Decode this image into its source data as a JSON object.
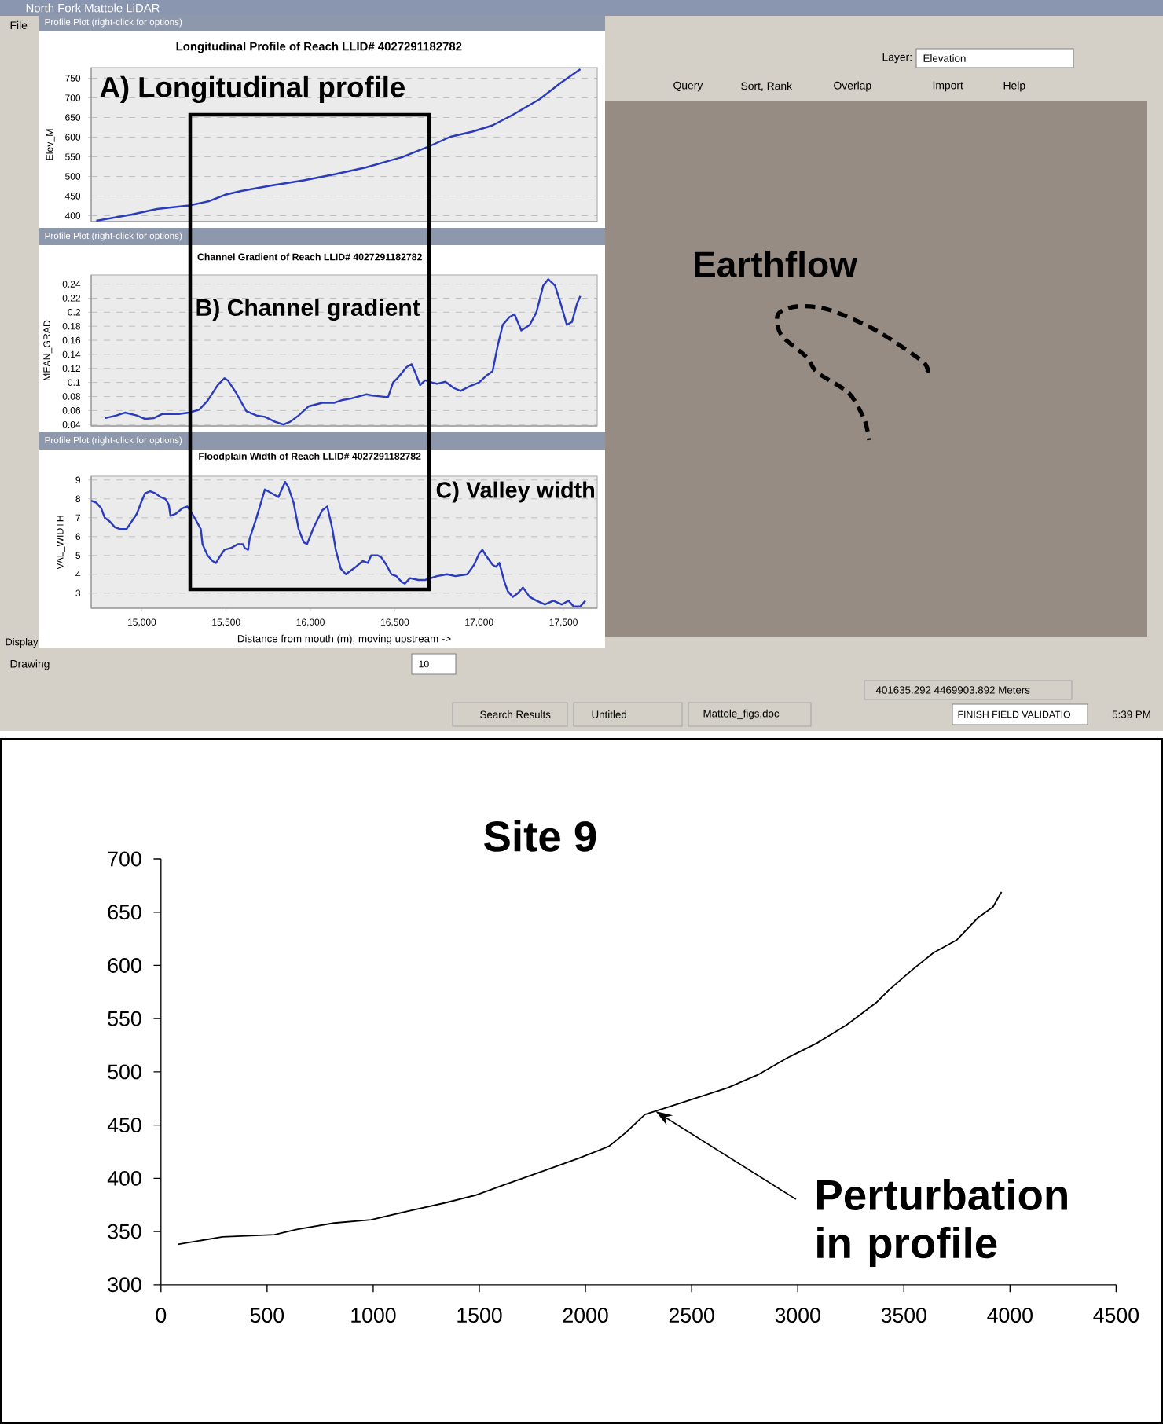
{
  "chart_data": [
    {
      "type": "other",
      "title": "North Fork Mattole LiDAR",
      "annotations": [
        "Earthflow",
        "File",
        "Layer:",
        "Elevation",
        "Query",
        "Sort, Rank",
        "Overlap",
        "Import",
        "Help",
        "Display",
        "Drawing",
        "10",
        "401635.292 4469903.892 Meters",
        "Search Results",
        "Untitled",
        "Mattole_figs.doc",
        "FINISH FIELD VALIDATIO",
        "5:39 PM"
      ]
    },
    {
      "type": "line",
      "title": "Longitudinal Profile of Reach LLID# 4027291182782",
      "ylabel": "Elev_M",
      "annotations": [
        "Profile Plot (right-click for options)",
        "A) Longitudinal profile"
      ],
      "x": [
        14730,
        14940,
        15090,
        15280,
        15400,
        15500,
        15590,
        15770,
        15960,
        16150,
        16330,
        16550,
        16690,
        16830,
        16960,
        17080,
        17200,
        17360,
        17480,
        17600
      ],
      "values": [
        387,
        403,
        417,
        426,
        437,
        454,
        463,
        477,
        490,
        506,
        523,
        550,
        574,
        601,
        614,
        630,
        657,
        697,
        737,
        773
      ],
      "color": "#2b3bbd",
      "xlim": [
        14700,
        17700
      ],
      "ylim": [
        385,
        777
      ],
      "yticks": [
        400,
        450,
        500,
        550,
        600,
        650,
        700,
        750
      ],
      "grid": "y",
      "tick_labels": "y"
    },
    {
      "type": "line",
      "title": "Channel Gradient of Reach LLID# 4027291182782",
      "ylabel": "MEAN_GRAD",
      "annotations": [
        "Profile Plot (right-click for options)",
        "B) Channel gradient"
      ],
      "x": [
        14780,
        14850,
        14900,
        14970,
        15020,
        15070,
        15120,
        15220,
        15280,
        15340,
        15390,
        15450,
        15490,
        15510,
        15560,
        15620,
        15680,
        15730,
        15790,
        15840,
        15880,
        15930,
        15990,
        16070,
        16140,
        16190,
        16240,
        16330,
        16380,
        16460,
        16490,
        16520,
        16570,
        16600,
        16620,
        16650,
        16680,
        16720,
        16750,
        16800,
        16850,
        16890,
        16940,
        17000,
        17040,
        17080,
        17110,
        17140,
        17180,
        17210,
        17250,
        17300,
        17340,
        17380,
        17410,
        17450,
        17480,
        17520,
        17550,
        17580,
        17600
      ],
      "values": [
        0.049,
        0.053,
        0.057,
        0.053,
        0.048,
        0.049,
        0.055,
        0.055,
        0.057,
        0.061,
        0.074,
        0.096,
        0.106,
        0.103,
        0.085,
        0.059,
        0.053,
        0.051,
        0.044,
        0.04,
        0.044,
        0.053,
        0.066,
        0.071,
        0.071,
        0.075,
        0.077,
        0.083,
        0.081,
        0.079,
        0.1,
        0.107,
        0.122,
        0.126,
        0.115,
        0.096,
        0.103,
        0.1,
        0.098,
        0.101,
        0.092,
        0.088,
        0.094,
        0.1,
        0.109,
        0.116,
        0.152,
        0.182,
        0.193,
        0.197,
        0.174,
        0.182,
        0.2,
        0.238,
        0.247,
        0.238,
        0.215,
        0.182,
        0.186,
        0.212,
        0.223
      ],
      "color": "#2b3bbd",
      "xlim": [
        14700,
        17700
      ],
      "ylim": [
        0.038,
        0.253
      ],
      "yticks": [
        0.04,
        0.06,
        0.08,
        0.1,
        0.12,
        0.14,
        0.16,
        0.18,
        0.2,
        0.22,
        0.24
      ],
      "grid": "y",
      "tick_labels": "y"
    },
    {
      "type": "line",
      "title": "Floodplain Width of Reach LLID# 4027291182782",
      "xlabel": "Distance from mouth (m), moving upstream ->",
      "ylabel": "VAL_WIDTH",
      "annotations": [
        "Profile Plot (right-click for options)",
        "C) Valley width"
      ],
      "x": [
        14700,
        14730,
        14760,
        14780,
        14810,
        14840,
        14870,
        14910,
        14940,
        14970,
        15000,
        15020,
        15050,
        15080,
        15110,
        15140,
        15160,
        15170,
        15200,
        15240,
        15270,
        15300,
        15350,
        15360,
        15390,
        15420,
        15440,
        15460,
        15490,
        15530,
        15570,
        15600,
        15610,
        15630,
        15640,
        15680,
        15710,
        15730,
        15750,
        15790,
        15810,
        15830,
        15850,
        15870,
        15900,
        15930,
        15960,
        15980,
        16020,
        16070,
        16100,
        16130,
        16150,
        16180,
        16210,
        16240,
        16270,
        16310,
        16340,
        16360,
        16400,
        16420,
        16450,
        16480,
        16510,
        16540,
        16560,
        16590,
        16640,
        16680,
        16750,
        16810,
        16860,
        16930,
        16970,
        17000,
        17020,
        17040,
        17080,
        17100,
        17120,
        17150,
        17170,
        17200,
        17230,
        17260,
        17300,
        17340,
        17390,
        17440,
        17490,
        17530,
        17560,
        17600,
        17630
      ],
      "values": [
        7.9,
        7.8,
        7.5,
        7.0,
        6.8,
        6.5,
        6.4,
        6.4,
        6.8,
        7.2,
        7.9,
        8.3,
        8.4,
        8.3,
        8.1,
        8.0,
        7.7,
        7.1,
        7.2,
        7.5,
        7.6,
        7.2,
        6.4,
        5.6,
        5.0,
        4.7,
        4.6,
        4.9,
        5.3,
        5.4,
        5.6,
        5.6,
        5.4,
        5.3,
        5.9,
        7.0,
        7.9,
        8.5,
        8.4,
        8.2,
        8.1,
        8.5,
        8.9,
        8.6,
        7.8,
        6.4,
        5.7,
        5.6,
        6.5,
        7.4,
        7.6,
        6.4,
        5.3,
        4.3,
        4.0,
        4.2,
        4.4,
        4.7,
        4.6,
        5.0,
        5.0,
        4.9,
        4.5,
        4.0,
        3.9,
        3.6,
        3.5,
        3.8,
        3.7,
        3.7,
        3.9,
        4.0,
        3.9,
        4.0,
        4.5,
        5.1,
        5.3,
        5.0,
        4.5,
        4.4,
        4.6,
        3.6,
        3.1,
        2.8,
        3.0,
        3.3,
        2.8,
        2.6,
        2.4,
        2.6,
        2.4,
        2.6,
        2.3,
        2.3,
        2.6
      ],
      "color": "#2b3bbd",
      "xlim": [
        14700,
        17700
      ],
      "ylim": [
        2.2,
        9.2
      ],
      "xticks": [
        {
          "value": 15000,
          "label": "15,000"
        },
        {
          "value": 15500,
          "label": "15,500"
        },
        {
          "value": 16000,
          "label": "16,000"
        },
        {
          "value": 16500,
          "label": "16,500"
        },
        {
          "value": 17000,
          "label": "17,000"
        },
        {
          "value": 17500,
          "label": "17,500"
        }
      ],
      "yticks": [
        3,
        4,
        5,
        6,
        7,
        8,
        9
      ],
      "grid": "y"
    },
    {
      "type": "line",
      "title": "Site 9",
      "annotations": [
        {
          "text": "Perturbation in profile",
          "x": 2330,
          "y": 463
        }
      ],
      "x": [
        80,
        290,
        535,
        640,
        815,
        990,
        1160,
        1340,
        1480,
        1620,
        1790,
        1970,
        2110,
        2190,
        2280,
        2390,
        2530,
        2670,
        2810,
        2950,
        3090,
        3230,
        3370,
        3430,
        3540,
        3640,
        3750,
        3850,
        3920,
        3960
      ],
      "values": [
        338,
        345,
        347,
        352,
        358,
        361,
        369,
        377,
        384,
        394,
        406,
        419,
        430,
        443,
        460,
        467,
        476,
        485,
        497,
        513,
        527,
        544,
        565,
        577,
        596,
        612,
        624,
        645,
        655,
        669
      ],
      "color": "#000000",
      "xlim": [
        0,
        4500
      ],
      "ylim": [
        300,
        700
      ],
      "xticks": [
        0,
        500,
        1000,
        1500,
        2000,
        2500,
        3000,
        3500,
        4000,
        4500
      ],
      "yticks": [
        300,
        350,
        400,
        450,
        500,
        550,
        600,
        650,
        700
      ]
    }
  ]
}
